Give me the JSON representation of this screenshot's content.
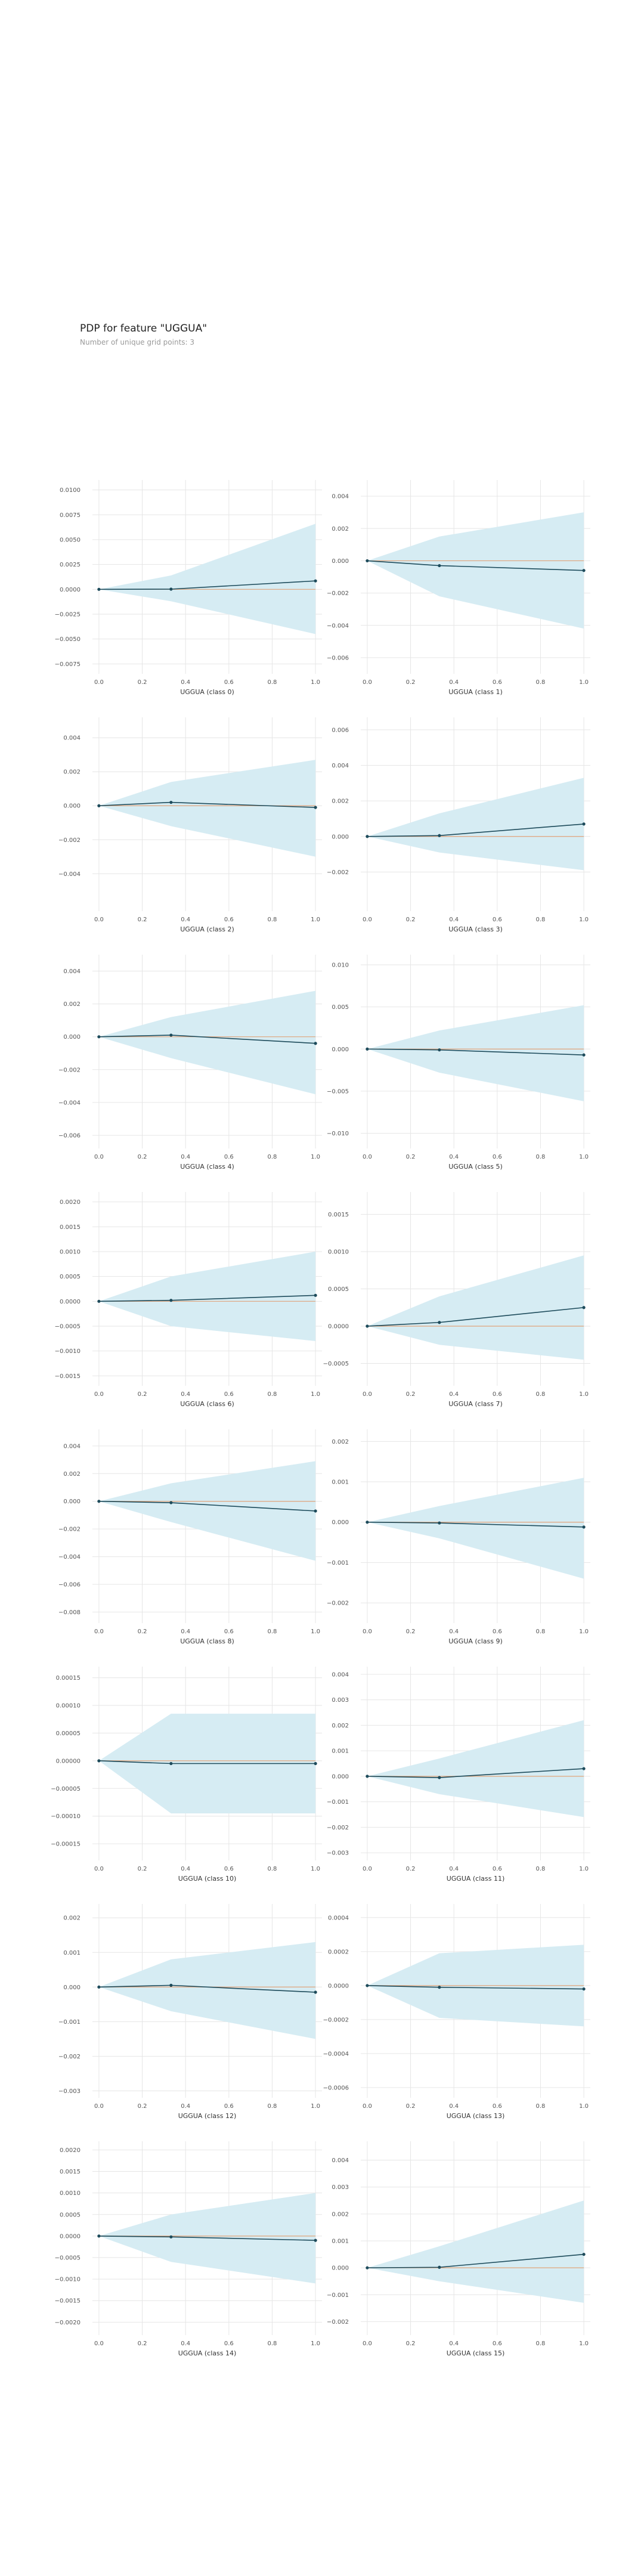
{
  "header": {
    "title": "PDP for feature \"UGGUA\"",
    "subtitle": "Number of unique grid points: 3"
  },
  "colors": {
    "band": "#d6ecf3",
    "line": "#1d4b5b",
    "zero_line": "#e0a37a",
    "grid": "#e6e6e6",
    "tick_text": "#555555"
  },
  "chart_data": [
    {
      "type": "line",
      "title": "",
      "xlabel": "UGGUA (class 0)",
      "x": [
        0,
        0.333,
        1
      ],
      "y": [
        0,
        2e-05,
        0.00085
      ],
      "upper": [
        0,
        0.0014,
        0.0066
      ],
      "lower": [
        0,
        -0.0012,
        -0.0045
      ],
      "yticks": [
        -0.0075,
        -0.005,
        -0.0025,
        0,
        0.0025,
        0.005,
        0.0075,
        0.01
      ],
      "yticklabels": [
        "−0.0075",
        "−0.0050",
        "−0.0025",
        "0.0000",
        "0.0025",
        "0.0050",
        "0.0075",
        "0.0100"
      ],
      "ylim": [
        -0.0085,
        0.011
      ],
      "xticks": [
        0,
        0.2,
        0.4,
        0.6,
        0.8,
        1
      ],
      "xticklabels": [
        "0.0",
        "0.2",
        "0.4",
        "0.6",
        "0.8",
        "1.0"
      ],
      "xlim": [
        -0.03,
        1.03
      ]
    },
    {
      "type": "line",
      "title": "",
      "xlabel": "UGGUA (class 1)",
      "x": [
        0,
        0.333,
        1
      ],
      "y": [
        0,
        -0.0003,
        -0.0006
      ],
      "upper": [
        0,
        0.0015,
        0.003
      ],
      "lower": [
        0,
        -0.0022,
        -0.0042
      ],
      "yticks": [
        -0.006,
        -0.004,
        -0.002,
        0,
        0.002,
        0.004
      ],
      "yticklabels": [
        "−0.006",
        "−0.004",
        "−0.002",
        "0.000",
        "0.002",
        "0.004"
      ],
      "ylim": [
        -0.007,
        0.005
      ],
      "xticks": [
        0,
        0.2,
        0.4,
        0.6,
        0.8,
        1
      ],
      "xticklabels": [
        "0.0",
        "0.2",
        "0.4",
        "0.6",
        "0.8",
        "1.0"
      ],
      "xlim": [
        -0.03,
        1.03
      ]
    },
    {
      "type": "line",
      "title": "",
      "xlabel": "UGGUA (class 2)",
      "x": [
        0,
        0.333,
        1
      ],
      "y": [
        0,
        0.0002,
        -0.0001
      ],
      "upper": [
        0,
        0.0014,
        0.0027
      ],
      "lower": [
        0,
        -0.0012,
        -0.003
      ],
      "yticks": [
        -0.004,
        -0.002,
        0,
        0.002,
        0.004
      ],
      "yticklabels": [
        "−0.004",
        "−0.002",
        "0.000",
        "0.002",
        "0.004"
      ],
      "ylim": [
        -0.0062,
        0.0052
      ],
      "xticks": [
        0,
        0.2,
        0.4,
        0.6,
        0.8,
        1
      ],
      "xticklabels": [
        "0.0",
        "0.2",
        "0.4",
        "0.6",
        "0.8",
        "1.0"
      ],
      "xlim": [
        -0.03,
        1.03
      ]
    },
    {
      "type": "line",
      "title": "",
      "xlabel": "UGGUA (class 3)",
      "x": [
        0,
        0.333,
        1
      ],
      "y": [
        0,
        5e-05,
        0.0007
      ],
      "upper": [
        0,
        0.0013,
        0.0033
      ],
      "lower": [
        0,
        -0.0009,
        -0.0019
      ],
      "yticks": [
        -0.002,
        0,
        0.002,
        0.004,
        0.006
      ],
      "yticklabels": [
        "−0.002",
        "0.000",
        "0.002",
        "0.004",
        "0.006"
      ],
      "ylim": [
        -0.0042,
        0.0067
      ],
      "xticks": [
        0,
        0.2,
        0.4,
        0.6,
        0.8,
        1
      ],
      "xticklabels": [
        "0.0",
        "0.2",
        "0.4",
        "0.6",
        "0.8",
        "1.0"
      ],
      "xlim": [
        -0.03,
        1.03
      ]
    },
    {
      "type": "line",
      "title": "",
      "xlabel": "UGGUA (class 4)",
      "x": [
        0,
        0.333,
        1
      ],
      "y": [
        0,
        0.0001,
        -0.0004
      ],
      "upper": [
        0,
        0.0012,
        0.0028
      ],
      "lower": [
        0,
        -0.0013,
        -0.0035
      ],
      "yticks": [
        -0.006,
        -0.004,
        -0.002,
        0,
        0.002,
        0.004
      ],
      "yticklabels": [
        "−0.006",
        "−0.004",
        "−0.002",
        "0.000",
        "0.002",
        "0.004"
      ],
      "ylim": [
        -0.0068,
        0.005
      ],
      "xticks": [
        0,
        0.2,
        0.4,
        0.6,
        0.8,
        1
      ],
      "xticklabels": [
        "0.0",
        "0.2",
        "0.4",
        "0.6",
        "0.8",
        "1.0"
      ],
      "xlim": [
        -0.03,
        1.03
      ]
    },
    {
      "type": "line",
      "title": "",
      "xlabel": "UGGUA (class 5)",
      "x": [
        0,
        0.333,
        1
      ],
      "y": [
        0,
        -0.0001,
        -0.0007
      ],
      "upper": [
        0,
        0.0022,
        0.0052
      ],
      "lower": [
        0,
        -0.0028,
        -0.0062
      ],
      "yticks": [
        -0.01,
        -0.005,
        0,
        0.005,
        0.01
      ],
      "yticklabels": [
        "−0.010",
        "−0.005",
        "0.000",
        "0.005",
        "0.010"
      ],
      "ylim": [
        -0.0118,
        0.0112
      ],
      "xticks": [
        0,
        0.2,
        0.4,
        0.6,
        0.8,
        1
      ],
      "xticklabels": [
        "0.0",
        "0.2",
        "0.4",
        "0.6",
        "0.8",
        "1.0"
      ],
      "xlim": [
        -0.03,
        1.03
      ]
    },
    {
      "type": "line",
      "title": "",
      "xlabel": "UGGUA (class 6)",
      "x": [
        0,
        0.333,
        1
      ],
      "y": [
        0,
        2e-05,
        0.00012
      ],
      "upper": [
        0,
        0.0005,
        0.001
      ],
      "lower": [
        0,
        -0.0005,
        -0.0008
      ],
      "yticks": [
        -0.0015,
        -0.001,
        -0.0005,
        0,
        0.0005,
        0.001,
        0.0015,
        0.002
      ],
      "yticklabels": [
        "−0.0015",
        "−0.0010",
        "−0.0005",
        "0.0000",
        "0.0005",
        "0.0010",
        "0.0015",
        "0.0020"
      ],
      "ylim": [
        -0.0017,
        0.0022
      ],
      "xticks": [
        0,
        0.2,
        0.4,
        0.6,
        0.8,
        1
      ],
      "xticklabels": [
        "0.0",
        "0.2",
        "0.4",
        "0.6",
        "0.8",
        "1.0"
      ],
      "xlim": [
        -0.03,
        1.03
      ]
    },
    {
      "type": "line",
      "title": "",
      "xlabel": "UGGUA (class 7)",
      "x": [
        0,
        0.333,
        1
      ],
      "y": [
        0,
        5e-05,
        0.00025
      ],
      "upper": [
        0,
        0.0004,
        0.00095
      ],
      "lower": [
        0,
        -0.00025,
        -0.00045
      ],
      "yticks": [
        -0.0005,
        0,
        0.0005,
        0.001,
        0.0015
      ],
      "yticklabels": [
        "−0.0005",
        "0.0000",
        "0.0005",
        "0.0010",
        "0.0015"
      ],
      "ylim": [
        -0.0008,
        0.0018
      ],
      "xticks": [
        0,
        0.2,
        0.4,
        0.6,
        0.8,
        1
      ],
      "xticklabels": [
        "0.0",
        "0.2",
        "0.4",
        "0.6",
        "0.8",
        "1.0"
      ],
      "xlim": [
        -0.03,
        1.03
      ]
    },
    {
      "type": "line",
      "title": "",
      "xlabel": "UGGUA (class 8)",
      "x": [
        0,
        0.333,
        1
      ],
      "y": [
        0,
        -0.0001,
        -0.0007
      ],
      "upper": [
        0,
        0.0013,
        0.0029
      ],
      "lower": [
        0,
        -0.0015,
        -0.0043
      ],
      "yticks": [
        -0.008,
        -0.006,
        -0.004,
        -0.002,
        0,
        0.002,
        0.004
      ],
      "yticklabels": [
        "−0.008",
        "−0.006",
        "−0.004",
        "−0.002",
        "0.000",
        "0.002",
        "0.004"
      ],
      "ylim": [
        -0.0088,
        0.0052
      ],
      "xticks": [
        0,
        0.2,
        0.4,
        0.6,
        0.8,
        1
      ],
      "xticklabels": [
        "0.0",
        "0.2",
        "0.4",
        "0.6",
        "0.8",
        "1.0"
      ],
      "xlim": [
        -0.03,
        1.03
      ]
    },
    {
      "type": "line",
      "title": "",
      "xlabel": "UGGUA (class 9)",
      "x": [
        0,
        0.333,
        1
      ],
      "y": [
        0,
        -2e-05,
        -0.00012
      ],
      "upper": [
        0,
        0.0004,
        0.0011
      ],
      "lower": [
        0,
        -0.0004,
        -0.0014
      ],
      "yticks": [
        -0.002,
        -0.001,
        0,
        0.001,
        0.002
      ],
      "yticklabels": [
        "−0.002",
        "−0.001",
        "0.000",
        "0.001",
        "0.002"
      ],
      "ylim": [
        -0.0025,
        0.0023
      ],
      "xticks": [
        0,
        0.2,
        0.4,
        0.6,
        0.8,
        1
      ],
      "xticklabels": [
        "0.0",
        "0.2",
        "0.4",
        "0.6",
        "0.8",
        "1.0"
      ],
      "xlim": [
        -0.03,
        1.03
      ]
    },
    {
      "type": "line",
      "title": "",
      "xlabel": "UGGUA (class 10)",
      "x": [
        0,
        0.333,
        1
      ],
      "y": [
        0,
        -5e-06,
        -5e-06
      ],
      "upper": [
        0,
        8.5e-05,
        8.5e-05
      ],
      "lower": [
        0,
        -9.5e-05,
        -9.5e-05
      ],
      "yticks": [
        -0.00015,
        -0.0001,
        -5e-05,
        0,
        5e-05,
        0.0001,
        0.00015
      ],
      "yticklabels": [
        "−0.00015",
        "−0.00010",
        "−0.00005",
        "0.00000",
        "0.00005",
        "0.00010",
        "0.00015"
      ],
      "ylim": [
        -0.00018,
        0.00017
      ],
      "xticks": [
        0,
        0.2,
        0.4,
        0.6,
        0.8,
        1
      ],
      "xticklabels": [
        "0.0",
        "0.2",
        "0.4",
        "0.6",
        "0.8",
        "1.0"
      ],
      "xlim": [
        -0.03,
        1.03
      ]
    },
    {
      "type": "line",
      "title": "",
      "xlabel": "UGGUA (class 11)",
      "x": [
        0,
        0.333,
        1
      ],
      "y": [
        0,
        -5e-05,
        0.0003
      ],
      "upper": [
        0,
        0.0007,
        0.0022
      ],
      "lower": [
        0,
        -0.0007,
        -0.0016
      ],
      "yticks": [
        -0.003,
        -0.002,
        -0.001,
        0,
        0.001,
        0.002,
        0.003,
        0.004
      ],
      "yticklabels": [
        "−0.003",
        "−0.002",
        "−0.001",
        "0.000",
        "0.001",
        "0.002",
        "0.003",
        "0.004"
      ],
      "ylim": [
        -0.0033,
        0.0043
      ],
      "xticks": [
        0,
        0.2,
        0.4,
        0.6,
        0.8,
        1
      ],
      "xticklabels": [
        "0.0",
        "0.2",
        "0.4",
        "0.6",
        "0.8",
        "1.0"
      ],
      "xlim": [
        -0.03,
        1.03
      ]
    },
    {
      "type": "line",
      "title": "",
      "xlabel": "UGGUA (class 12)",
      "x": [
        0,
        0.333,
        1
      ],
      "y": [
        0,
        5e-05,
        -0.00015
      ],
      "upper": [
        0,
        0.0008,
        0.0013
      ],
      "lower": [
        0,
        -0.0007,
        -0.0015
      ],
      "yticks": [
        -0.003,
        -0.002,
        -0.001,
        0,
        0.001,
        0.002
      ],
      "yticklabels": [
        "−0.003",
        "−0.002",
        "−0.001",
        "0.000",
        "0.001",
        "0.002"
      ],
      "ylim": [
        -0.0032,
        0.0024
      ],
      "xticks": [
        0,
        0.2,
        0.4,
        0.6,
        0.8,
        1
      ],
      "xticklabels": [
        "0.0",
        "0.2",
        "0.4",
        "0.6",
        "0.8",
        "1.0"
      ],
      "xlim": [
        -0.03,
        1.03
      ]
    },
    {
      "type": "line",
      "title": "",
      "xlabel": "UGGUA (class 13)",
      "x": [
        0,
        0.333,
        1
      ],
      "y": [
        0,
        -1e-05,
        -2e-05
      ],
      "upper": [
        0,
        0.00019,
        0.00024
      ],
      "lower": [
        0,
        -0.00019,
        -0.00024
      ],
      "yticks": [
        -0.0006,
        -0.0004,
        -0.0002,
        0,
        0.0002,
        0.0004
      ],
      "yticklabels": [
        "−0.0006",
        "−0.0004",
        "−0.0002",
        "0.0000",
        "0.0002",
        "0.0004"
      ],
      "ylim": [
        -0.00066,
        0.00048
      ],
      "xticks": [
        0,
        0.2,
        0.4,
        0.6,
        0.8,
        1
      ],
      "xticklabels": [
        "0.0",
        "0.2",
        "0.4",
        "0.6",
        "0.8",
        "1.0"
      ],
      "xlim": [
        -0.03,
        1.03
      ]
    },
    {
      "type": "line",
      "title": "",
      "xlabel": "UGGUA (class 14)",
      "x": [
        0,
        0.333,
        1
      ],
      "y": [
        0,
        -2e-05,
        -0.0001
      ],
      "upper": [
        0,
        0.0005,
        0.001
      ],
      "lower": [
        0,
        -0.0006,
        -0.0011
      ],
      "yticks": [
        -0.002,
        -0.0015,
        -0.001,
        -0.0005,
        0,
        0.0005,
        0.001,
        0.0015,
        0.002
      ],
      "yticklabels": [
        "−0.0020",
        "−0.0015",
        "−0.0010",
        "−0.0005",
        "0.0000",
        "0.0005",
        "0.0010",
        "0.0015",
        "0.0020"
      ],
      "ylim": [
        -0.0023,
        0.0022
      ],
      "xticks": [
        0,
        0.2,
        0.4,
        0.6,
        0.8,
        1
      ],
      "xticklabels": [
        "0.0",
        "0.2",
        "0.4",
        "0.6",
        "0.8",
        "1.0"
      ],
      "xlim": [
        -0.03,
        1.03
      ]
    },
    {
      "type": "line",
      "title": "",
      "xlabel": "UGGUA (class 15)",
      "x": [
        0,
        0.333,
        1
      ],
      "y": [
        0,
        2e-05,
        0.0005
      ],
      "upper": [
        0,
        0.0008,
        0.0025
      ],
      "lower": [
        0,
        -0.0005,
        -0.0013
      ],
      "yticks": [
        -0.002,
        -0.001,
        0,
        0.001,
        0.002,
        0.003,
        0.004
      ],
      "yticklabels": [
        "−0.002",
        "−0.001",
        "0.000",
        "0.001",
        "0.002",
        "0.003",
        "0.004"
      ],
      "ylim": [
        -0.0025,
        0.0047
      ],
      "xticks": [
        0,
        0.2,
        0.4,
        0.6,
        0.8,
        1
      ],
      "xticklabels": [
        "0.0",
        "0.2",
        "0.4",
        "0.6",
        "0.8",
        "1.0"
      ],
      "xlim": [
        -0.03,
        1.03
      ]
    }
  ]
}
